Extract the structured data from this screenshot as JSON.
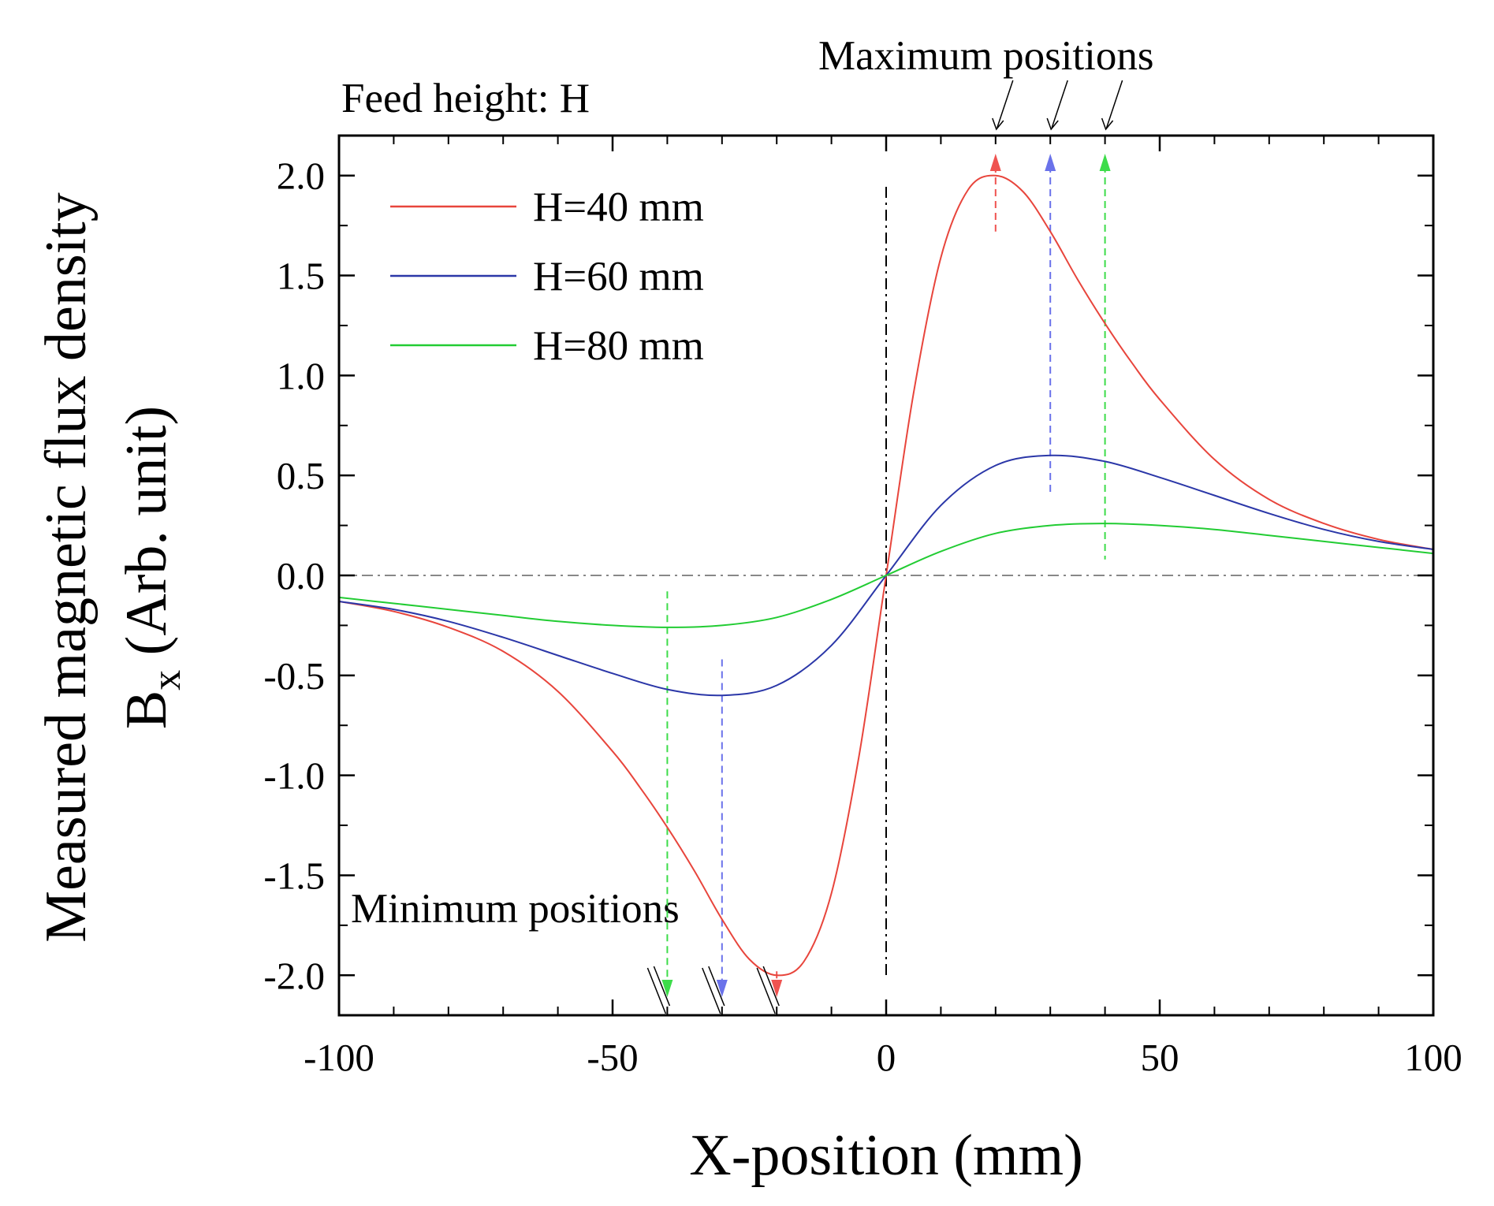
{
  "chart_data": {
    "type": "line",
    "xlabel": "X-position (mm)",
    "ylabel_line1": "Measured magnetic flux density",
    "ylabel_line2_symbol": "B",
    "ylabel_line2_subscript": "x",
    "ylabel_line2_rest": " (Arb. unit)",
    "xlim": [
      -100,
      100
    ],
    "ylim": [
      -2.2,
      2.2
    ],
    "xticks": [
      -100,
      -50,
      0,
      50,
      100
    ],
    "xtick_labels": [
      "-100",
      "-50",
      "0",
      "50",
      "100"
    ],
    "yticks": [
      -2.0,
      -1.5,
      -1.0,
      -0.5,
      0.0,
      0.5,
      1.0,
      1.5,
      2.0
    ],
    "ytick_labels": [
      "-2.0",
      "-1.5",
      "-1.0",
      "-0.5",
      "0.0",
      "0.5",
      "1.0",
      "1.5",
      "2.0"
    ],
    "annotations": {
      "feed_height": "Feed height: H",
      "maximum": "Maximum positions",
      "minimum": "Minimum positions"
    },
    "legend_position": "top-left",
    "series": [
      {
        "name": "H=40 mm",
        "color": "#e8453c",
        "peak_x": 20,
        "x": [
          -100,
          -90,
          -80,
          -70,
          -60,
          -50,
          -45,
          -40,
          -35,
          -30,
          -25,
          -20,
          -15,
          -10,
          -5,
          0,
          5,
          10,
          15,
          20,
          25,
          30,
          35,
          40,
          45,
          50,
          60,
          70,
          80,
          90,
          100
        ],
        "y": [
          -0.13,
          -0.18,
          -0.26,
          -0.38,
          -0.58,
          -0.88,
          -1.06,
          -1.26,
          -1.48,
          -1.72,
          -1.92,
          -2.0,
          -1.93,
          -1.59,
          -0.91,
          0.0,
          0.91,
          1.59,
          1.93,
          2.0,
          1.92,
          1.72,
          1.48,
          1.26,
          1.06,
          0.88,
          0.58,
          0.38,
          0.26,
          0.18,
          0.13
        ]
      },
      {
        "name": "H=60 mm",
        "color": "#2b37a8",
        "peak_x": 30,
        "x": [
          -100,
          -90,
          -80,
          -70,
          -60,
          -50,
          -40,
          -30,
          -20,
          -10,
          0,
          10,
          20,
          30,
          40,
          50,
          60,
          70,
          80,
          90,
          100
        ],
        "y": [
          -0.13,
          -0.17,
          -0.23,
          -0.31,
          -0.4,
          -0.49,
          -0.57,
          -0.6,
          -0.55,
          -0.35,
          0.0,
          0.35,
          0.55,
          0.6,
          0.57,
          0.49,
          0.4,
          0.31,
          0.23,
          0.17,
          0.13
        ]
      },
      {
        "name": "H=80 mm",
        "color": "#22cc33",
        "peak_x": 40,
        "x": [
          -100,
          -90,
          -80,
          -70,
          -60,
          -50,
          -40,
          -30,
          -20,
          -10,
          0,
          10,
          20,
          30,
          40,
          50,
          60,
          70,
          80,
          90,
          100
        ],
        "y": [
          -0.11,
          -0.14,
          -0.17,
          -0.2,
          -0.23,
          -0.25,
          -0.26,
          -0.25,
          -0.21,
          -0.12,
          0.0,
          0.12,
          0.21,
          0.25,
          0.26,
          0.25,
          0.23,
          0.2,
          0.17,
          0.14,
          0.11
        ]
      }
    ]
  }
}
